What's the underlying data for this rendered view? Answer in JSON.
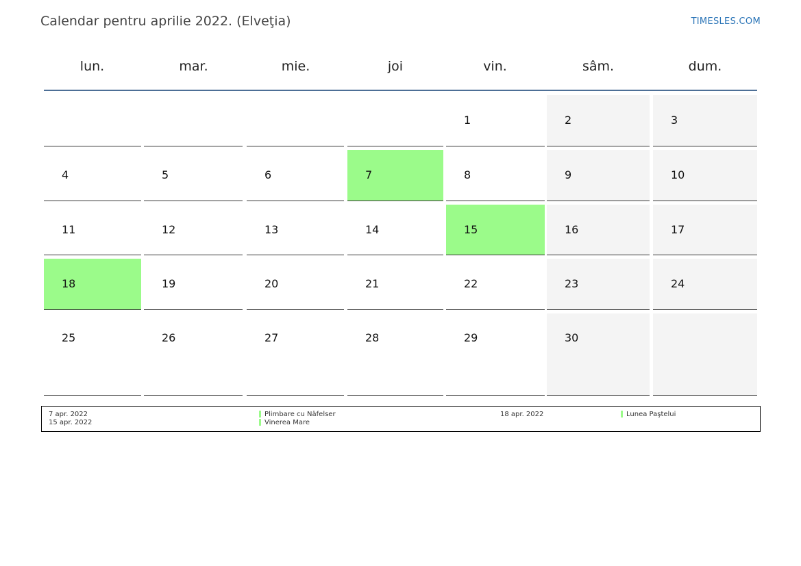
{
  "header": {
    "title": "Calendar pentru aprilie 2022. (Elveţia)",
    "site": "TIMESLES.COM"
  },
  "colors": {
    "holiday": "#9bfb8a",
    "weekend": "#f4f4f4",
    "rule": "#4d6f96",
    "link": "#2a74b7"
  },
  "weekdays": [
    "lun.",
    "mar.",
    "mie.",
    "joi",
    "vin.",
    "sâm.",
    "dum."
  ],
  "weeks": [
    [
      "",
      "",
      "",
      "",
      "1",
      "2",
      "3"
    ],
    [
      "4",
      "5",
      "6",
      "7",
      "8",
      "9",
      "10"
    ],
    [
      "11",
      "12",
      "13",
      "14",
      "15",
      "16",
      "17"
    ],
    [
      "18",
      "19",
      "20",
      "21",
      "22",
      "23",
      "24"
    ],
    [
      "25",
      "26",
      "27",
      "28",
      "29",
      "30",
      ""
    ]
  ],
  "holiday_days": [
    "7",
    "15",
    "18"
  ],
  "legend": {
    "col1_dates": [
      "7 apr. 2022",
      "15 apr. 2022"
    ],
    "col1_names": [
      "Plimbare cu Näfelser",
      "Vinerea Mare"
    ],
    "col2_dates": [
      "18 apr. 2022"
    ],
    "col2_names": [
      "Lunea Paştelui"
    ]
  }
}
